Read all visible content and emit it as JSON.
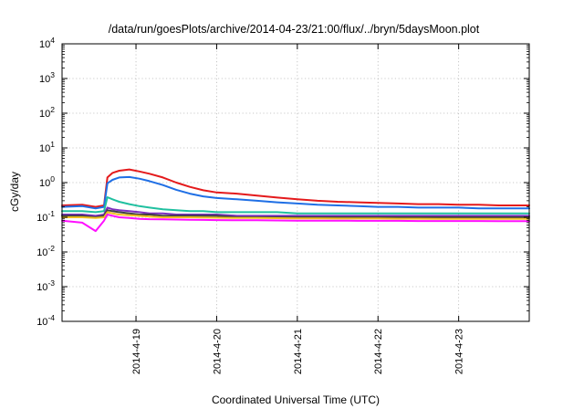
{
  "chart_data": {
    "type": "line",
    "title": "/data/run/goesPlots/archive/2014-04-23/21:00/flux/../bryn/5daysMoon.plot",
    "xlabel": "Coordinated Universal Time (UTC)",
    "ylabel": "cGy/day",
    "yscale": "log",
    "ylim": [
      0.0001,
      10000
    ],
    "y_ticks": [
      {
        "base": "10",
        "exp": "-4"
      },
      {
        "base": "10",
        "exp": "-3"
      },
      {
        "base": "10",
        "exp": "-2"
      },
      {
        "base": "10",
        "exp": "-1"
      },
      {
        "base": "10",
        "exp": "0"
      },
      {
        "base": "10",
        "exp": "1"
      },
      {
        "base": "10",
        "exp": "2"
      },
      {
        "base": "10",
        "exp": "3"
      },
      {
        "base": "10",
        "exp": "4"
      }
    ],
    "xlim": [
      "2014-04-18 02:00",
      "2014-04-23 21:00"
    ],
    "x_ticks": [
      "2014-4-19",
      "2014-4-20",
      "2014-4-21",
      "2014-4-22",
      "2014-4-23"
    ],
    "grid": true,
    "x": [
      "2014-04-18 02:00",
      "2014-04-18 08:00",
      "2014-04-18 12:00",
      "2014-04-18 14:30",
      "2014-04-18 15:30",
      "2014-04-18 17:00",
      "2014-04-18 19:00",
      "2014-04-18 22:00",
      "2014-04-19 01:00",
      "2014-04-19 04:00",
      "2014-04-19 08:00",
      "2014-04-19 12:00",
      "2014-04-19 16:00",
      "2014-04-19 20:00",
      "2014-04-20 00:00",
      "2014-04-20 06:00",
      "2014-04-20 12:00",
      "2014-04-20 18:00",
      "2014-04-21 00:00",
      "2014-04-21 06:00",
      "2014-04-21 12:00",
      "2014-04-21 18:00",
      "2014-04-22 00:00",
      "2014-04-22 06:00",
      "2014-04-22 12:00",
      "2014-04-22 18:00",
      "2014-04-23 00:00",
      "2014-04-23 06:00",
      "2014-04-23 12:00",
      "2014-04-23 18:00",
      "2014-04-23 21:00"
    ],
    "series": [
      {
        "color": "#e41a1c",
        "values": [
          0.22,
          0.23,
          0.2,
          0.22,
          1.4,
          1.9,
          2.2,
          2.4,
          2.1,
          1.8,
          1.4,
          1.0,
          0.75,
          0.6,
          0.52,
          0.48,
          0.42,
          0.37,
          0.33,
          0.3,
          0.28,
          0.27,
          0.26,
          0.25,
          0.24,
          0.24,
          0.23,
          0.23,
          0.22,
          0.22,
          0.22
        ]
      },
      {
        "color": "#1f6fe5",
        "values": [
          0.2,
          0.21,
          0.18,
          0.2,
          0.95,
          1.2,
          1.4,
          1.45,
          1.3,
          1.1,
          0.85,
          0.62,
          0.48,
          0.4,
          0.36,
          0.33,
          0.3,
          0.27,
          0.25,
          0.23,
          0.22,
          0.21,
          0.2,
          0.2,
          0.19,
          0.19,
          0.19,
          0.18,
          0.18,
          0.18,
          0.18
        ]
      },
      {
        "color": "#20c0a0",
        "values": [
          0.15,
          0.15,
          0.14,
          0.15,
          0.38,
          0.33,
          0.28,
          0.24,
          0.21,
          0.19,
          0.17,
          0.16,
          0.15,
          0.15,
          0.14,
          0.14,
          0.14,
          0.14,
          0.13,
          0.13,
          0.13,
          0.13,
          0.13,
          0.13,
          0.13,
          0.13,
          0.13,
          0.13,
          0.13,
          0.13,
          0.13
        ]
      },
      {
        "color": "#7b2fbe",
        "values": [
          0.12,
          0.12,
          0.11,
          0.12,
          0.19,
          0.17,
          0.16,
          0.15,
          0.14,
          0.13,
          0.13,
          0.12,
          0.12,
          0.12,
          0.12,
          0.11,
          0.11,
          0.11,
          0.11,
          0.11,
          0.11,
          0.11,
          0.11,
          0.11,
          0.11,
          0.11,
          0.11,
          0.11,
          0.11,
          0.11,
          0.11
        ]
      },
      {
        "color": "#404040",
        "values": [
          0.11,
          0.11,
          0.1,
          0.11,
          0.16,
          0.15,
          0.14,
          0.13,
          0.12,
          0.12,
          0.11,
          0.11,
          0.11,
          0.11,
          0.11,
          0.1,
          0.1,
          0.1,
          0.1,
          0.1,
          0.1,
          0.1,
          0.1,
          0.1,
          0.1,
          0.1,
          0.1,
          0.1,
          0.1,
          0.1,
          0.1
        ]
      },
      {
        "color": "#f0c020",
        "values": [
          0.1,
          0.1,
          0.095,
          0.1,
          0.14,
          0.13,
          0.12,
          0.115,
          0.11,
          0.105,
          0.1,
          0.1,
          0.1,
          0.098,
          0.097,
          0.095,
          0.095,
          0.094,
          0.093,
          0.093,
          0.092,
          0.092,
          0.092,
          0.091,
          0.091,
          0.09,
          0.09,
          0.09,
          0.09,
          0.09,
          0.09
        ]
      },
      {
        "color": "#ff10ff",
        "values": [
          0.08,
          0.07,
          0.04,
          0.08,
          0.12,
          0.11,
          0.1,
          0.095,
          0.09,
          0.088,
          0.087,
          0.086,
          0.085,
          0.084,
          0.083,
          0.082,
          0.082,
          0.081,
          0.08,
          0.08,
          0.08,
          0.079,
          0.079,
          0.079,
          0.078,
          0.078,
          0.078,
          0.078,
          0.077,
          0.077,
          0.077
        ]
      }
    ]
  }
}
